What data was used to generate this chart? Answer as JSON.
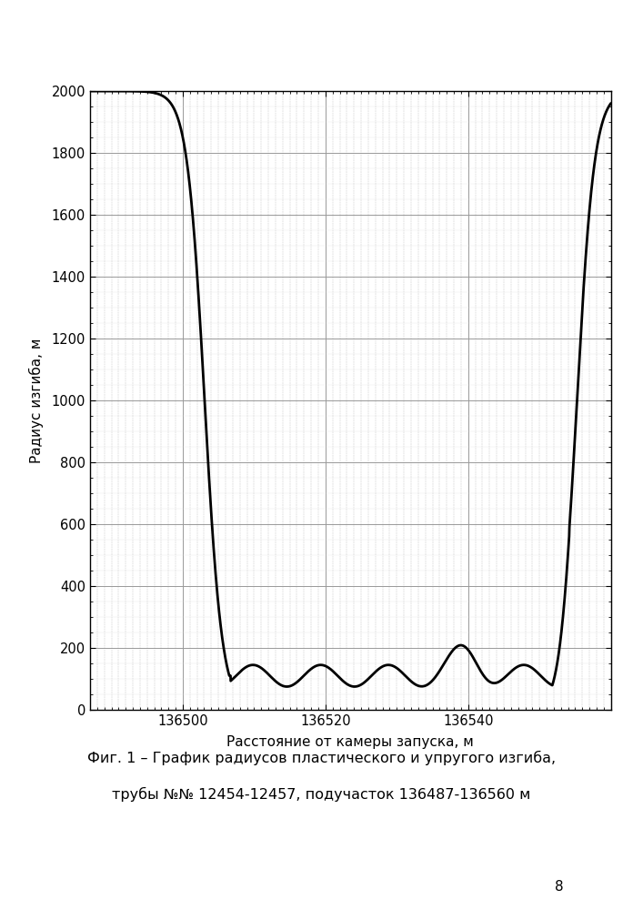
{
  "xlabel": "Расстояние от камеры запуска, м",
  "ylabel": "Радиус изгиба, м",
  "caption_line1": "Фиг. 1 – График радиусов пластического и упругого изгиба,",
  "caption_line2": "трубы №№ 12454-12457, подучасток 136487-136560 м",
  "xlim": [
    136487,
    136560
  ],
  "ylim": [
    0,
    2000
  ],
  "xticks": [
    136500,
    136520,
    136540
  ],
  "yticks": [
    0,
    200,
    400,
    600,
    800,
    1000,
    1200,
    1400,
    1600,
    1800,
    2000
  ],
  "x_start": 136487,
  "x_end": 136560,
  "background_color": "#ffffff",
  "line_color": "#000000",
  "page_number": "8"
}
